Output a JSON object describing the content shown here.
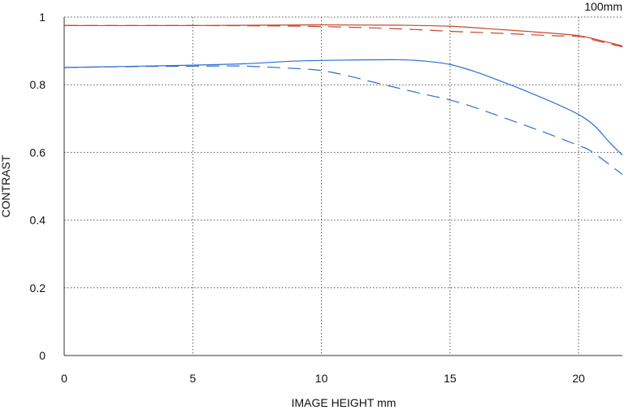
{
  "chart_data": {
    "type": "line",
    "title": "",
    "corner_label": "100mm",
    "xlabel": "IMAGE HEIGHT  mm",
    "ylabel": "CONTRAST",
    "xlim": [
      0,
      21.7
    ],
    "ylim": [
      0,
      1
    ],
    "x_ticks": [
      0,
      5,
      10,
      15,
      20
    ],
    "x_tick_labels": [
      "0",
      "5",
      "10",
      "15",
      "20"
    ],
    "y_ticks": [
      0,
      0.2,
      0.4,
      0.6,
      0.8,
      1
    ],
    "y_tick_labels": [
      "0",
      "0.2",
      "0.4",
      "0.6",
      "0.8",
      "1"
    ],
    "grid": true,
    "colors": {
      "red": "#c8452c",
      "blue": "#2f6fd3",
      "grid": "#555555",
      "axis": "#333333"
    },
    "series": [
      {
        "color": "red",
        "dash": "solid",
        "points": [
          [
            0,
            0.975
          ],
          [
            5,
            0.975
          ],
          [
            10,
            0.977
          ],
          [
            13,
            0.976
          ],
          [
            15,
            0.973
          ],
          [
            17,
            0.963
          ],
          [
            18.5,
            0.955
          ],
          [
            20,
            0.945
          ],
          [
            21,
            0.928
          ],
          [
            21.7,
            0.915
          ]
        ]
      },
      {
        "color": "red",
        "dash": "dashed",
        "points": [
          [
            0,
            0.975
          ],
          [
            5,
            0.975
          ],
          [
            8,
            0.974
          ],
          [
            10,
            0.972
          ],
          [
            12,
            0.968
          ],
          [
            14,
            0.962
          ],
          [
            15,
            0.958
          ],
          [
            17,
            0.952
          ],
          [
            19,
            0.945
          ],
          [
            20,
            0.943
          ],
          [
            20.5,
            0.934
          ],
          [
            21.7,
            0.912
          ]
        ]
      },
      {
        "color": "blue",
        "dash": "solid",
        "points": [
          [
            0,
            0.851
          ],
          [
            3,
            0.855
          ],
          [
            5,
            0.858
          ],
          [
            7,
            0.862
          ],
          [
            9,
            0.87
          ],
          [
            11,
            0.873
          ],
          [
            13,
            0.874
          ],
          [
            14,
            0.87
          ],
          [
            15,
            0.86
          ],
          [
            16,
            0.838
          ],
          [
            17,
            0.81
          ],
          [
            18,
            0.78
          ],
          [
            19,
            0.748
          ],
          [
            20,
            0.712
          ],
          [
            20.6,
            0.68
          ],
          [
            21.2,
            0.63
          ],
          [
            21.7,
            0.592
          ]
        ]
      },
      {
        "color": "blue",
        "dash": "dashed",
        "points": [
          [
            0,
            0.851
          ],
          [
            3,
            0.854
          ],
          [
            5,
            0.855
          ],
          [
            7,
            0.855
          ],
          [
            9,
            0.848
          ],
          [
            10,
            0.842
          ],
          [
            11,
            0.827
          ],
          [
            12,
            0.808
          ],
          [
            13,
            0.79
          ],
          [
            14,
            0.772
          ],
          [
            15,
            0.755
          ],
          [
            16,
            0.732
          ],
          [
            17,
            0.705
          ],
          [
            18,
            0.678
          ],
          [
            19,
            0.65
          ],
          [
            20,
            0.62
          ],
          [
            20.5,
            0.603
          ],
          [
            21.7,
            0.535
          ]
        ]
      }
    ]
  }
}
